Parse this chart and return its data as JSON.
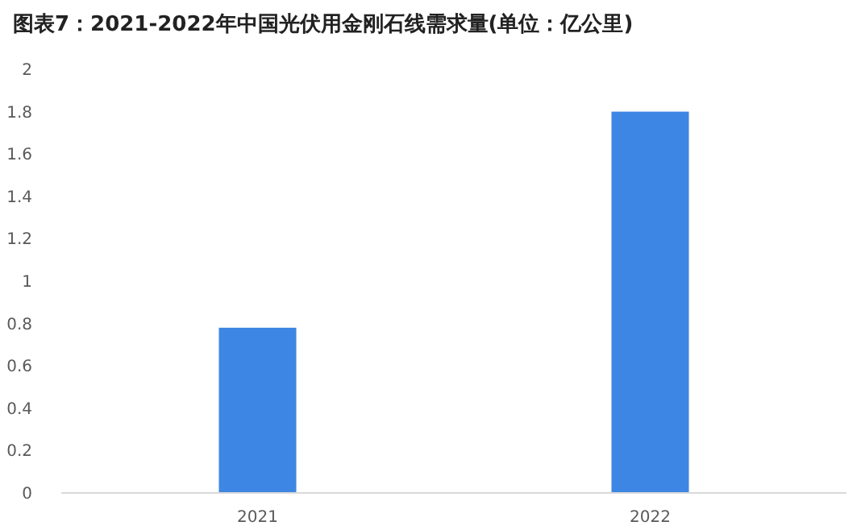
{
  "chart_data": {
    "type": "bar",
    "title": "图表7：2021-2022年中国光伏用金刚石线需求量(单位：亿公里)",
    "categories": [
      "2021",
      "2022"
    ],
    "values": [
      0.78,
      1.8
    ],
    "color": "#3d86e3",
    "ylim": [
      0,
      2
    ],
    "yticks": [
      0,
      0.2,
      0.4,
      0.6,
      0.8,
      1,
      1.2,
      1.4,
      1.6,
      1.8,
      2
    ],
    "grid": false
  }
}
